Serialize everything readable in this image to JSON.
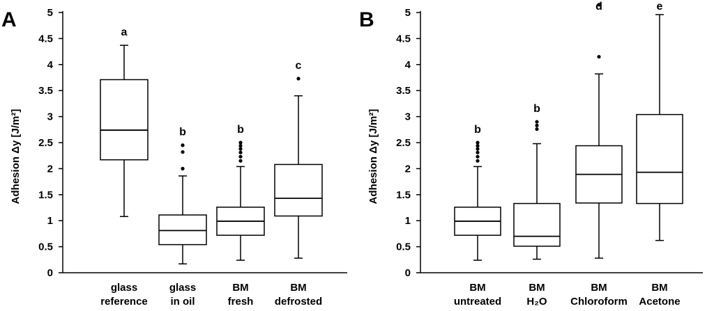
{
  "chart_data": [
    {
      "type": "box",
      "panel_label": "A",
      "ylabel": "Adhesion Δy [J/m²]",
      "ylim": [
        0,
        5
      ],
      "yticks": [
        "0",
        "0.5",
        "1",
        "1.5",
        "2",
        "2.5",
        "3",
        "3.5",
        "4",
        "4.5",
        "5"
      ],
      "categories": [
        {
          "line1": "glass",
          "line2": "reference"
        },
        {
          "line1": "glass",
          "line2": "in oil"
        },
        {
          "line1": "BM",
          "line2": "fresh"
        },
        {
          "line1": "BM",
          "line2": "defrosted"
        }
      ],
      "boxes": [
        {
          "whisker_low": 1.08,
          "q1": 2.17,
          "median": 2.74,
          "q3": 3.71,
          "whisker_high": 4.37,
          "outliers": [],
          "letter": "a"
        },
        {
          "whisker_low": 0.17,
          "q1": 0.54,
          "median": 0.81,
          "q3": 1.11,
          "whisker_high": 1.86,
          "outliers": [
            2.0,
            2.32,
            2.45
          ],
          "letter": "b"
        },
        {
          "whisker_low": 0.24,
          "q1": 0.72,
          "median": 0.99,
          "q3": 1.26,
          "whisker_high": 2.04,
          "outliers": [
            2.15,
            2.23,
            2.31,
            2.38,
            2.44,
            2.5
          ],
          "letter": "b"
        },
        {
          "whisker_low": 0.28,
          "q1": 1.09,
          "median": 1.43,
          "q3": 2.08,
          "whisker_high": 3.4,
          "outliers": [
            3.73
          ],
          "letter": "c"
        }
      ]
    },
    {
      "type": "box",
      "panel_label": "B",
      "ylabel": "Adhesion Δy [J/m²]",
      "ylim": [
        0,
        5
      ],
      "yticks": [
        "0",
        "0.5",
        "1",
        "1.5",
        "2",
        "2.5",
        "3",
        "3.5",
        "4",
        "4.5",
        "5"
      ],
      "categories": [
        {
          "line1": "BM",
          "line2": "untreated"
        },
        {
          "line1": "BM",
          "line2": "H₂O"
        },
        {
          "line1": "BM",
          "line2": "Chloroform"
        },
        {
          "line1": "BM",
          "line2": "Acetone"
        }
      ],
      "boxes": [
        {
          "whisker_low": 0.24,
          "q1": 0.72,
          "median": 0.99,
          "q3": 1.26,
          "whisker_high": 2.04,
          "outliers": [
            2.15,
            2.23,
            2.31,
            2.38,
            2.44,
            2.5
          ],
          "letter": "b"
        },
        {
          "whisker_low": 0.26,
          "q1": 0.51,
          "median": 0.7,
          "q3": 1.33,
          "whisker_high": 2.48,
          "outliers": [
            2.76,
            2.83,
            2.9
          ],
          "letter": "b"
        },
        {
          "whisker_low": 0.28,
          "q1": 1.34,
          "median": 1.89,
          "q3": 2.44,
          "whisker_high": 3.82,
          "outliers": [
            4.15,
            5.15
          ],
          "letter": "d"
        },
        {
          "whisker_low": 0.62,
          "q1": 1.33,
          "median": 1.93,
          "q3": 3.04,
          "whisker_high": 4.96,
          "outliers": [],
          "letter": "e"
        }
      ]
    }
  ]
}
